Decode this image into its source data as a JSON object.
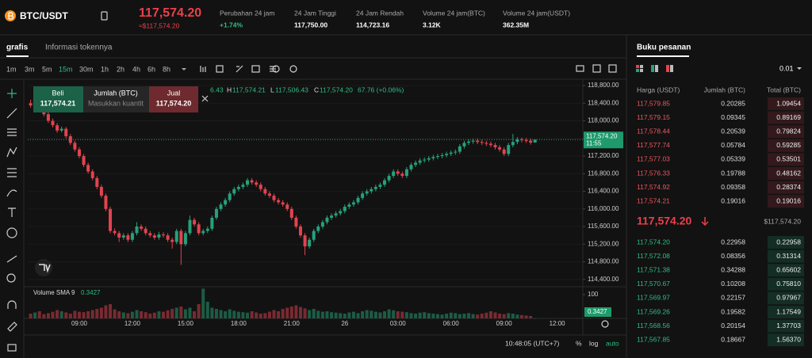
{
  "header": {
    "symbol": "BTC/USDT",
    "price": "117,574.20",
    "price_usd": "≈$117,574.20",
    "stats": [
      {
        "label": "Perubahan 24 jam",
        "value": "+1.74%"
      },
      {
        "label": "24 Jam Tinggi",
        "value": "117,750.00"
      },
      {
        "label": "24 Jam Rendah",
        "value": "114,723.16"
      },
      {
        "label": "Volume 24 jam(BTC)",
        "value": "3.12K"
      },
      {
        "label": "Volume 24 jam(USDT)",
        "value": "362.35M"
      }
    ]
  },
  "tabs": [
    "grafis",
    "Informasi tokennya"
  ],
  "timeframes": [
    {
      "label": "1m"
    },
    {
      "label": "3m"
    },
    {
      "label": "5m"
    },
    {
      "label": "15m",
      "active": true
    },
    {
      "label": "30m"
    },
    {
      "label": "1h"
    },
    {
      "label": "2h"
    },
    {
      "label": "4h"
    },
    {
      "label": "6h"
    },
    {
      "label": "8h"
    }
  ],
  "order_form": {
    "buy_label": "Beli",
    "buy_price": "117,574.21",
    "amount_label": "Jumlah (BTC)",
    "amount_placeholder": "Masukkan kuantit",
    "sell_label": "Jual",
    "sell_price": "117,574.20"
  },
  "legend": {
    "open": "6.43",
    "high_label": "H",
    "high": "117,574.21",
    "low_label": "L",
    "low": "117,506.43",
    "close_label": "C",
    "close": "117,574.20",
    "change": "67.76 (+0.06%)"
  },
  "chart_data": {
    "type": "candlestick",
    "categories": [
      null,
      null,
      null,
      null,
      null,
      null,
      null,
      null,
      null,
      null,
      null,
      "09:00",
      null,
      null,
      null,
      null,
      null,
      null,
      null,
      null,
      null,
      null,
      null,
      "12:00",
      null,
      null,
      null,
      null,
      null,
      null,
      null,
      null,
      null,
      null,
      null,
      "15:00",
      null,
      null,
      null,
      null,
      null,
      null,
      null,
      null,
      null,
      null,
      null,
      "18:00",
      null,
      null,
      null,
      null,
      null,
      null,
      null,
      null,
      null,
      null,
      null,
      "21:00",
      null,
      null,
      null,
      null,
      null,
      null,
      null,
      null,
      null,
      null,
      null,
      "26",
      null,
      null,
      null,
      null,
      null,
      null,
      null,
      null,
      null,
      null,
      null,
      "03:00",
      null,
      null,
      null,
      null,
      null,
      null,
      null,
      null,
      null,
      null,
      null,
      "06:00",
      null,
      null,
      null,
      null,
      null,
      null,
      null,
      null,
      null,
      null,
      null,
      "09:00",
      null,
      null,
      null,
      null,
      null,
      null,
      null,
      null,
      null,
      null,
      null,
      "12:00"
    ],
    "open": [
      118400,
      118350,
      118380,
      118250,
      118150,
      118000,
      117900,
      117780,
      117820,
      117650,
      117500,
      117350,
      117200,
      117000,
      116850,
      116700,
      116500,
      116300,
      116000,
      115500,
      115450,
      115350,
      115400,
      115300,
      115450,
      115600,
      115550,
      115450,
      115400,
      115350,
      115420,
      115400,
      115300,
      115250,
      115500,
      115200,
      115450,
      115750,
      115650,
      115450,
      115500,
      115550,
      115800,
      116000,
      116100,
      116200,
      116350,
      116450,
      116500,
      116550,
      116650,
      116600,
      116550,
      116450,
      116350,
      116300,
      116200,
      116150,
      116100,
      116000,
      115800,
      115600,
      115400,
      115150,
      115300,
      115500,
      115600,
      115700,
      115800,
      115850,
      115900,
      115950,
      116050,
      116100,
      116150,
      116250,
      116350,
      116400,
      116450,
      116500,
      116550,
      116650,
      116750,
      116850,
      116800,
      116750,
      116900,
      117000,
      117050,
      117100,
      117120,
      117150,
      117180,
      117200,
      117220,
      117250,
      117280,
      117300,
      117420,
      117500,
      117530,
      117550,
      117520,
      117500,
      117480,
      117450,
      117400,
      117350,
      117250,
      117450,
      117520,
      117580,
      117560,
      117550,
      117506.43,
      null,
      null,
      null,
      null,
      null
    ],
    "high": [
      118480,
      118430,
      118420,
      118300,
      118200,
      118050,
      117950,
      117870,
      117860,
      117700,
      117550,
      117400,
      117250,
      117050,
      116900,
      116750,
      116550,
      116350,
      116050,
      115560,
      115500,
      115450,
      115450,
      115500,
      115700,
      115650,
      115600,
      115500,
      115450,
      115480,
      115470,
      115450,
      115350,
      115550,
      115550,
      115500,
      115850,
      115800,
      115700,
      115550,
      115600,
      115850,
      116050,
      116150,
      116250,
      116400,
      116500,
      116550,
      116600,
      116700,
      116700,
      116650,
      116600,
      116500,
      116400,
      116350,
      116250,
      116200,
      116150,
      116050,
      115850,
      115650,
      115450,
      115350,
      115550,
      115650,
      115750,
      115850,
      115900,
      115950,
      116000,
      116100,
      116150,
      116200,
      116300,
      116400,
      116450,
      116500,
      116550,
      116600,
      116700,
      116800,
      116900,
      116900,
      116850,
      116950,
      117050,
      117100,
      117150,
      117170,
      117200,
      117230,
      117250,
      117270,
      117300,
      117330,
      117350,
      117470,
      117550,
      117580,
      117600,
      117600,
      117570,
      117550,
      117530,
      117500,
      117450,
      117400,
      117500,
      117700,
      117630,
      117620,
      117610,
      117600,
      117574.21,
      null,
      null,
      null,
      null,
      null
    ],
    "low": [
      118300,
      118300,
      118200,
      118100,
      117950,
      117850,
      117730,
      117740,
      117600,
      117450,
      117300,
      117150,
      116950,
      116800,
      116650,
      116450,
      116250,
      115950,
      115450,
      115400,
      115250,
      115300,
      115250,
      115250,
      115400,
      115500,
      115400,
      115350,
      115300,
      115300,
      115350,
      115250,
      115100,
      115200,
      114730,
      115150,
      115400,
      115600,
      115400,
      115400,
      115450,
      115500,
      115750,
      115950,
      116050,
      116150,
      116300,
      116400,
      116450,
      116500,
      116550,
      116500,
      116400,
      116300,
      116250,
      116150,
      116100,
      116050,
      115950,
      115750,
      115550,
      115350,
      114950,
      115100,
      115250,
      115450,
      115550,
      115650,
      115750,
      115800,
      115850,
      115900,
      116000,
      116050,
      116100,
      116200,
      116300,
      116350,
      116400,
      116450,
      116500,
      116600,
      116700,
      116750,
      116700,
      116700,
      116850,
      116950,
      117000,
      117050,
      117070,
      117100,
      117130,
      117150,
      117170,
      117200,
      117230,
      117250,
      117370,
      117450,
      117480,
      117470,
      117450,
      117430,
      117400,
      117350,
      117300,
      117200,
      117200,
      117400,
      117470,
      117510,
      117500,
      117460,
      117506.43,
      null,
      null,
      null,
      null,
      null
    ],
    "close": [
      118350,
      118380,
      118250,
      118150,
      118000,
      117900,
      117780,
      117820,
      117650,
      117500,
      117350,
      117200,
      117000,
      116850,
      116700,
      116500,
      116300,
      116000,
      115500,
      115450,
      115350,
      115400,
      115300,
      115450,
      115600,
      115550,
      115450,
      115400,
      115350,
      115420,
      115400,
      115300,
      115250,
      115500,
      115200,
      115450,
      115750,
      115650,
      115450,
      115500,
      115550,
      115800,
      116000,
      116100,
      116200,
      116350,
      116450,
      116500,
      116550,
      116650,
      116600,
      116550,
      116450,
      116350,
      116300,
      116200,
      116150,
      116100,
      116000,
      115800,
      115600,
      115400,
      115150,
      115300,
      115500,
      115600,
      115700,
      115800,
      115850,
      115900,
      115950,
      116050,
      116100,
      116150,
      116250,
      116350,
      116400,
      116450,
      116500,
      116550,
      116650,
      116750,
      116850,
      116800,
      116750,
      116900,
      117000,
      117050,
      117100,
      117120,
      117150,
      117180,
      117200,
      117220,
      117250,
      117280,
      117300,
      117420,
      117500,
      117530,
      117550,
      117520,
      117500,
      117480,
      117450,
      117400,
      117350,
      117250,
      117450,
      117520,
      117580,
      117560,
      117550,
      117506.43,
      117574.2,
      null,
      null,
      null,
      null,
      null
    ],
    "up_color": "#26a17b",
    "down_color": "#e2434f",
    "grid": true,
    "ylim": [
      114270,
      118945
    ],
    "yticks": [
      {
        "value": 114400,
        "label": "114,400.00"
      },
      {
        "value": 114800,
        "label": "114,800.00"
      },
      {
        "value": 115200,
        "label": "115,200.00"
      },
      {
        "value": 115600,
        "label": "115,600.00"
      },
      {
        "value": 116000,
        "label": "116,000.00"
      },
      {
        "value": 116400,
        "label": "116,400.00"
      },
      {
        "value": 116800,
        "label": "116,800.00"
      },
      {
        "value": 117200,
        "label": "117,200.00"
      },
      {
        "value": 117600,
        "label": "117,600.00"
      },
      {
        "value": 118000,
        "label": "118,000.00"
      },
      {
        "value": 118400,
        "label": "118,400.00"
      },
      {
        "value": 118800,
        "label": "118,800.00"
      }
    ],
    "last_price_label": "117,574.20",
    "countdown": "11:55",
    "volume": {
      "title": "Volume SMA 9",
      "up_color": "#1c5c45",
      "down_color": "#7a2a31",
      "ylim": [
        0,
        133
      ],
      "yticks": [
        100
      ],
      "values": [
        20,
        25,
        30,
        18,
        22,
        28,
        35,
        30,
        25,
        20,
        32,
        28,
        26,
        30,
        35,
        40,
        45,
        55,
        60,
        38,
        30,
        25,
        22,
        28,
        35,
        30,
        26,
        20,
        24,
        30,
        28,
        34,
        40,
        45,
        50,
        38,
        45,
        30,
        60,
        125,
        70,
        45,
        40,
        35,
        30,
        38,
        32,
        28,
        26,
        24,
        30,
        25,
        20,
        22,
        28,
        35,
        30,
        40,
        45,
        50,
        55,
        48,
        42,
        35,
        40,
        32,
        28,
        30,
        26,
        24,
        22,
        20,
        25,
        28,
        22,
        30,
        35,
        32,
        28,
        25,
        30,
        38,
        34,
        30,
        28,
        26,
        22,
        20,
        24,
        26,
        22,
        20,
        18,
        16,
        20,
        24,
        22,
        18,
        20,
        22,
        18,
        16,
        20,
        24,
        30,
        25,
        20,
        18,
        22,
        20,
        16,
        14,
        12,
        10,
        0.3427,
        null,
        null,
        null,
        null,
        null
      ]
    }
  },
  "footer": {
    "time": "10:48:05 (UTC+7)",
    "percent": "%",
    "log": "log",
    "auto": "auto"
  },
  "order_book": {
    "title": "Buku pesanan",
    "tick_size": "0.01",
    "columns": [
      "Harga (USDT)",
      "Jumlah (BTC)",
      "Total (BTC)"
    ],
    "asks": [
      [
        "117,579.85",
        "0.20285",
        "1.09454"
      ],
      [
        "117,579.15",
        "0.09345",
        "0.89169"
      ],
      [
        "117,578.44",
        "0.20539",
        "0.79824"
      ],
      [
        "117,577.74",
        "0.05784",
        "0.59285"
      ],
      [
        "117,577.03",
        "0.05339",
        "0.53501"
      ],
      [
        "117,576.33",
        "0.19788",
        "0.48162"
      ],
      [
        "117,574.92",
        "0.09358",
        "0.28374"
      ],
      [
        "117,574.21",
        "0.19016",
        "0.19016"
      ]
    ],
    "last_price": "117,574.20",
    "last_price_usd": "$117,574.20",
    "bids": [
      [
        "117,574.20",
        "0.22958",
        "0.22958"
      ],
      [
        "117,572.08",
        "0.08356",
        "0.31314"
      ],
      [
        "117,571.38",
        "0.34288",
        "0.65602"
      ],
      [
        "117,570.67",
        "0.10208",
        "0.75810"
      ],
      [
        "117,569.97",
        "0.22157",
        "0.97967"
      ],
      [
        "117,569.26",
        "0.19582",
        "1.17549"
      ],
      [
        "117,568.56",
        "0.20154",
        "1.37703"
      ],
      [
        "117,567.85",
        "0.18667",
        "1.56370"
      ]
    ]
  }
}
